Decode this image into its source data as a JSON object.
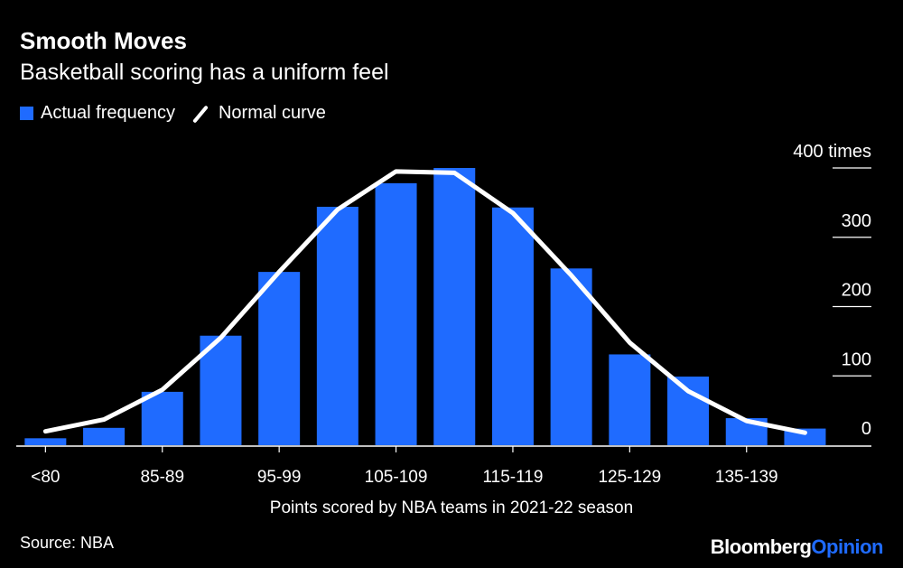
{
  "title": "Smooth Moves",
  "subtitle": "Basketball scoring has a uniform feel",
  "legend": {
    "actual": "Actual frequency",
    "normal": "Normal curve"
  },
  "source": "Source: NBA",
  "logo": {
    "bloomberg": "Bloomberg",
    "opinion": "Opinion"
  },
  "colors": {
    "bar": "#1f6bff",
    "curve": "#ffffff",
    "background": "#000000"
  },
  "chart_data": {
    "type": "bar",
    "categories": [
      "<80",
      "80-84",
      "85-89",
      "90-94",
      "95-99",
      "100-104",
      "105-109",
      "110-114",
      "115-119",
      "120-124",
      "125-129",
      "130-134",
      "135-139",
      "140+"
    ],
    "x_tick_labels": [
      "<80",
      "85-89",
      "95-99",
      "105-109",
      "115-119",
      "125-129",
      "135-139"
    ],
    "x_tick_categories": [
      "<80",
      "85-89",
      "95-99",
      "105-109",
      "115-119",
      "125-129",
      "135-139"
    ],
    "series": [
      {
        "name": "Actual frequency",
        "type": "bar",
        "values": [
          10,
          25,
          77,
          158,
          250,
          344,
          378,
          400,
          343,
          255,
          131,
          99,
          39,
          24
        ]
      },
      {
        "name": "Normal curve",
        "type": "line",
        "values": [
          20,
          37,
          80,
          155,
          250,
          340,
          395,
          393,
          335,
          245,
          148,
          78,
          35,
          18
        ]
      }
    ],
    "xlabel": "Points scored by NBA teams in 2021-22 season",
    "ylabel": "",
    "y_ticks": [
      {
        "value": 0,
        "label": "0"
      },
      {
        "value": 100,
        "label": "100"
      },
      {
        "value": 200,
        "label": "200"
      },
      {
        "value": 300,
        "label": "300"
      },
      {
        "value": 400,
        "label": "400 times"
      }
    ],
    "ylim": [
      0,
      400
    ],
    "grid": true,
    "legend_position": "top-left",
    "y_axis_side": "right"
  }
}
